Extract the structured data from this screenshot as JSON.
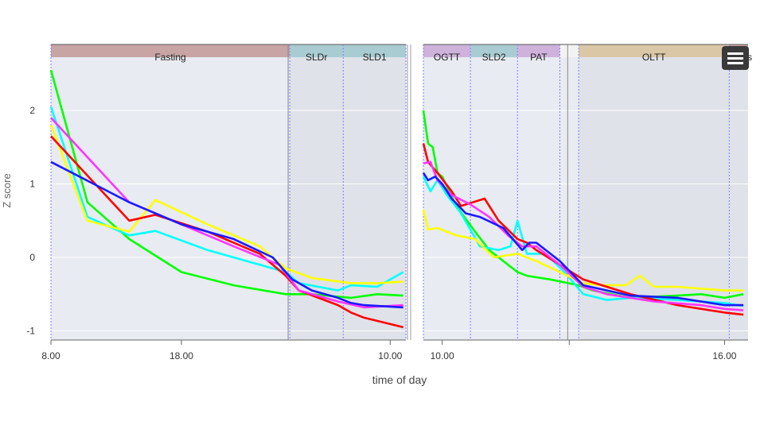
{
  "chart_data": {
    "type": "line",
    "xlabel": "time of day",
    "ylabel": "Z score",
    "ylim": [
      -1.15,
      2.9
    ],
    "yticks": [
      "2",
      "1",
      "0",
      "-1"
    ],
    "ytick_values": [
      2,
      1,
      0,
      -1
    ],
    "grid": true,
    "panels": [
      {
        "name": "left",
        "hours": [
          8,
          35.2
        ]
      },
      {
        "name": "right",
        "hours": [
          9.6,
          16.5
        ]
      }
    ],
    "xticks": [
      {
        "label": "8.00",
        "panel": 0,
        "h": 8
      },
      {
        "label": "18.00",
        "panel": 0,
        "h": 18
      },
      {
        "label": "10.00",
        "panel": 0,
        "h": 34
      },
      {
        "label": "10.00",
        "panel": 1,
        "h": 10
      },
      {
        "label": "16.00",
        "panel": 1,
        "h": 16
      }
    ],
    "phases": [
      {
        "label": "Fasting",
        "panel": 0,
        "start": 8,
        "end": 26.3,
        "color": "#c9a4a4",
        "shade": "#e8ebf1"
      },
      {
        "label": "SLDr",
        "panel": 0,
        "start": 26.3,
        "end": 30.4,
        "color": "#a9ccd3",
        "shade": "#dfe2e8"
      },
      {
        "label": "SLD1",
        "panel": 0,
        "start": 30.4,
        "end": 35.2,
        "color": "#a9ccd3",
        "shade": "#dfe2e8"
      },
      {
        "label": "OGTT",
        "panel": 1,
        "start": 9.6,
        "end": 10.6,
        "color": "#cfb2dc",
        "shade": "#e8ebf1"
      },
      {
        "label": "SLD2",
        "panel": 1,
        "start": 10.6,
        "end": 11.6,
        "color": "#a9ccd3",
        "shade": "#e8ebf1"
      },
      {
        "label": "PAT",
        "panel": 1,
        "start": 11.6,
        "end": 12.5,
        "color": "#cfb2dc",
        "shade": "#e8ebf1"
      },
      {
        "label": "OLTT",
        "panel": 1,
        "start": 12.9,
        "end": 16.1,
        "color": "#d9c7a6",
        "shade": "#dfe2e8"
      },
      {
        "label": "Stress",
        "panel": 1,
        "start": 16.1,
        "end": 16.5,
        "color": "#c9a4a4",
        "shade": "#dfe2e8"
      }
    ],
    "series": [
      {
        "color": "#00ff00",
        "panels": [
          [
            [
              8,
              2.55
            ],
            [
              10.8,
              0.75
            ],
            [
              14,
              0.25
            ],
            [
              18,
              -0.2
            ],
            [
              22,
              -0.38
            ],
            [
              26,
              -0.5
            ],
            [
              28,
              -0.5
            ],
            [
              31,
              -0.55
            ],
            [
              33,
              -0.5
            ],
            [
              35,
              -0.52
            ]
          ],
          [
            [
              9.6,
              2.0
            ],
            [
              9.7,
              1.55
            ],
            [
              9.8,
              1.5
            ],
            [
              9.9,
              1.15
            ],
            [
              10.0,
              1.1
            ],
            [
              10.3,
              0.7
            ],
            [
              10.7,
              0.35
            ],
            [
              11.0,
              0.1
            ],
            [
              11.4,
              -0.1
            ],
            [
              11.6,
              -0.2
            ],
            [
              11.8,
              -0.25
            ],
            [
              12.3,
              -0.3
            ],
            [
              12.9,
              -0.38
            ],
            [
              13.2,
              -0.45
            ],
            [
              14,
              -0.55
            ],
            [
              15,
              -0.52
            ],
            [
              15.5,
              -0.5
            ],
            [
              16,
              -0.55
            ],
            [
              16.4,
              -0.5
            ]
          ]
        ]
      },
      {
        "color": "#00ffff",
        "panels": [
          [
            [
              8,
              2.05
            ],
            [
              10.8,
              0.55
            ],
            [
              14,
              0.3
            ],
            [
              16,
              0.36
            ],
            [
              20,
              0.1
            ],
            [
              24,
              -0.1
            ],
            [
              26,
              -0.2
            ],
            [
              27,
              -0.35
            ],
            [
              30,
              -0.45
            ],
            [
              31,
              -0.38
            ],
            [
              33,
              -0.4
            ],
            [
              35,
              -0.2
            ]
          ],
          [
            [
              9.6,
              1.1
            ],
            [
              9.75,
              0.9
            ],
            [
              9.9,
              1.05
            ],
            [
              10.1,
              0.85
            ],
            [
              10.4,
              0.6
            ],
            [
              10.8,
              0.15
            ],
            [
              11.2,
              0.1
            ],
            [
              11.45,
              0.15
            ],
            [
              11.6,
              0.5
            ],
            [
              11.8,
              0.05
            ],
            [
              12.2,
              0.05
            ],
            [
              12.6,
              -0.2
            ],
            [
              13,
              -0.5
            ],
            [
              13.5,
              -0.58
            ],
            [
              14,
              -0.55
            ],
            [
              15,
              -0.58
            ],
            [
              16,
              -0.62
            ],
            [
              16.4,
              -0.66
            ]
          ]
        ]
      },
      {
        "color": "#ffff00",
        "panels": [
          [
            [
              8,
              1.8
            ],
            [
              10.8,
              0.5
            ],
            [
              14,
              0.35
            ],
            [
              16,
              0.78
            ],
            [
              20,
              0.45
            ],
            [
              24,
              0.15
            ],
            [
              26,
              -0.15
            ],
            [
              28,
              -0.28
            ],
            [
              31,
              -0.35
            ],
            [
              33,
              -0.35
            ],
            [
              35,
              -0.33
            ]
          ],
          [
            [
              9.6,
              0.65
            ],
            [
              9.7,
              0.38
            ],
            [
              9.9,
              0.4
            ],
            [
              10.3,
              0.3
            ],
            [
              10.7,
              0.25
            ],
            [
              11.1,
              0.0
            ],
            [
              11.6,
              0.05
            ],
            [
              12.0,
              -0.05
            ],
            [
              12.5,
              -0.2
            ],
            [
              13,
              -0.35
            ],
            [
              13.4,
              -0.38
            ],
            [
              13.9,
              -0.38
            ],
            [
              14.2,
              -0.25
            ],
            [
              14.5,
              -0.4
            ],
            [
              15,
              -0.4
            ],
            [
              16,
              -0.45
            ],
            [
              16.4,
              -0.45
            ]
          ]
        ]
      },
      {
        "color": "#ff0000",
        "panels": [
          [
            [
              8,
              1.65
            ],
            [
              14,
              0.5
            ],
            [
              16,
              0.58
            ],
            [
              20,
              0.35
            ],
            [
              24,
              0.05
            ],
            [
              26,
              -0.25
            ],
            [
              27,
              -0.45
            ],
            [
              30,
              -0.65
            ],
            [
              31,
              -0.75
            ],
            [
              32,
              -0.82
            ],
            [
              35,
              -0.95
            ]
          ],
          [
            [
              9.6,
              1.55
            ],
            [
              9.7,
              1.3
            ],
            [
              9.9,
              1.15
            ],
            [
              10.2,
              0.9
            ],
            [
              10.4,
              0.7
            ],
            [
              10.9,
              0.8
            ],
            [
              11.2,
              0.5
            ],
            [
              11.6,
              0.25
            ],
            [
              11.8,
              0.2
            ],
            [
              12.0,
              0.1
            ],
            [
              12.5,
              -0.1
            ],
            [
              13,
              -0.3
            ],
            [
              13.5,
              -0.4
            ],
            [
              14,
              -0.5
            ],
            [
              15,
              -0.65
            ],
            [
              16,
              -0.75
            ],
            [
              16.4,
              -0.78
            ]
          ]
        ]
      },
      {
        "color": "#ff33ff",
        "panels": [
          [
            [
              8,
              1.9
            ],
            [
              14,
              0.75
            ],
            [
              18,
              0.45
            ],
            [
              22,
              0.15
            ],
            [
              25.5,
              -0.1
            ],
            [
              27,
              -0.45
            ],
            [
              30,
              -0.6
            ],
            [
              32,
              -0.68
            ],
            [
              35,
              -0.65
            ]
          ],
          [
            [
              9.6,
              1.28
            ],
            [
              9.75,
              1.3
            ],
            [
              9.9,
              1.05
            ],
            [
              10.2,
              0.85
            ],
            [
              10.6,
              0.72
            ],
            [
              11.0,
              0.55
            ],
            [
              11.4,
              0.3
            ],
            [
              11.7,
              0.15
            ],
            [
              12.0,
              0.15
            ],
            [
              12.5,
              -0.1
            ],
            [
              13,
              -0.4
            ],
            [
              13.5,
              -0.5
            ],
            [
              14.5,
              -0.6
            ],
            [
              15.5,
              -0.65
            ],
            [
              16,
              -0.7
            ],
            [
              16.4,
              -0.72
            ]
          ]
        ]
      },
      {
        "color": "#1a1aff",
        "panels": [
          [
            [
              8,
              1.3
            ],
            [
              14,
              0.75
            ],
            [
              18,
              0.45
            ],
            [
              22,
              0.25
            ],
            [
              25,
              0.0
            ],
            [
              26.5,
              -0.3
            ],
            [
              28,
              -0.45
            ],
            [
              30,
              -0.55
            ],
            [
              31,
              -0.62
            ],
            [
              32,
              -0.65
            ],
            [
              35,
              -0.68
            ]
          ],
          [
            [
              9.6,
              1.15
            ],
            [
              9.7,
              1.05
            ],
            [
              9.85,
              1.1
            ],
            [
              10.0,
              1.0
            ],
            [
              10.2,
              0.8
            ],
            [
              10.5,
              0.6
            ],
            [
              10.8,
              0.55
            ],
            [
              11.3,
              0.4
            ],
            [
              11.5,
              0.25
            ],
            [
              11.7,
              0.1
            ],
            [
              11.85,
              0.2
            ],
            [
              12.0,
              0.2
            ],
            [
              12.5,
              -0.05
            ],
            [
              13,
              -0.38
            ],
            [
              13.5,
              -0.45
            ],
            [
              14,
              -0.52
            ],
            [
              15,
              -0.55
            ],
            [
              16,
              -0.65
            ],
            [
              16.4,
              -0.65
            ]
          ]
        ]
      }
    ]
  }
}
